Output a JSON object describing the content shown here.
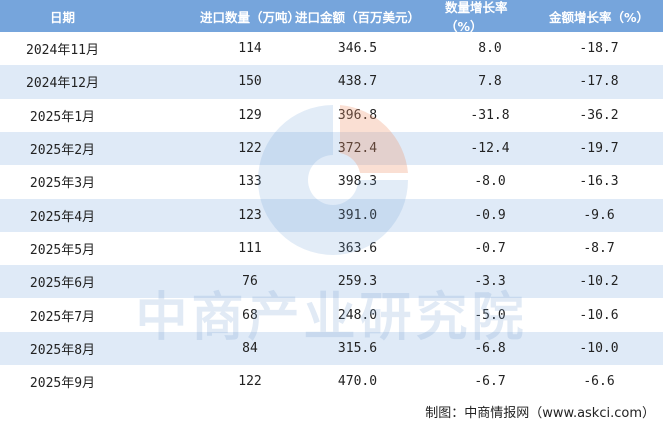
{
  "table": {
    "header": [
      "日期",
      "进口数量（万吨）",
      "进口金额（百万美元）",
      "数量增长率（%）",
      "金额增长率（%）"
    ],
    "rows": [
      [
        "2024年11月",
        "114",
        "346.5",
        "8.0",
        "-18.7"
      ],
      [
        "2024年12月",
        "150",
        "438.7",
        "7.8",
        "-17.8"
      ],
      [
        "2025年1月",
        "129",
        "396.8",
        "-31.8",
        "-36.2"
      ],
      [
        "2025年2月",
        "122",
        "372.4",
        "-12.4",
        "-19.7"
      ],
      [
        "2025年3月",
        "133",
        "398.3",
        "-8.0",
        "-16.3"
      ],
      [
        "2025年4月",
        "123",
        "391.0",
        "-0.9",
        "-9.6"
      ],
      [
        "2025年5月",
        "111",
        "363.6",
        "-0.7",
        "-8.7"
      ],
      [
        "2025年6月",
        "76",
        "259.3",
        "-3.3",
        "-10.2"
      ],
      [
        "2025年7月",
        "68",
        "248.0",
        "-5.0",
        "-10.6"
      ],
      [
        "2025年8月",
        "84",
        "315.6",
        "-6.8",
        "-10.0"
      ],
      [
        "2025年9月",
        "122",
        "470.0",
        "-6.7",
        "-6.6"
      ]
    ]
  },
  "watermark": "中商产业研究院",
  "footer": "制图：中商情报网（www.askci.com）"
}
